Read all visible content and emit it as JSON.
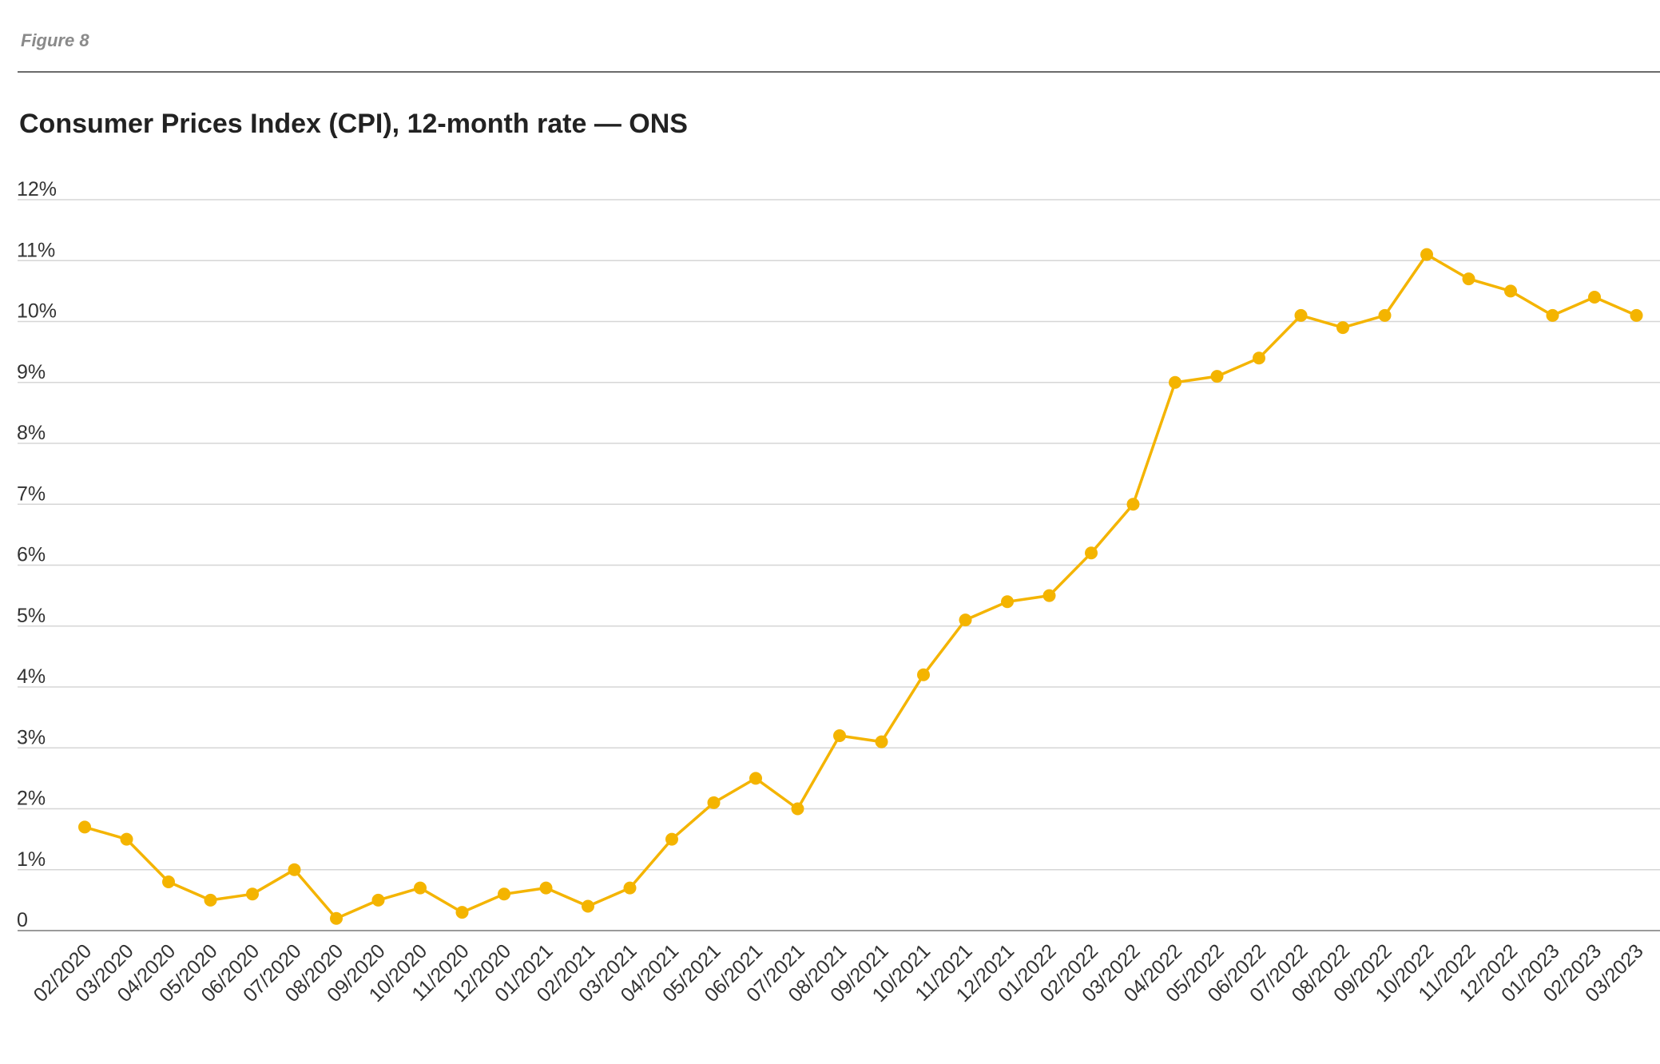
{
  "figure_label": "Figure 8",
  "chart_data": {
    "type": "line",
    "title": "Consumer Prices Index (CPI), 12-month rate — ONS",
    "xlabel": "",
    "ylabel": "",
    "ylim": [
      0,
      12
    ],
    "yticks": [
      {
        "value": 0,
        "label": "0"
      },
      {
        "value": 1,
        "label": "1%"
      },
      {
        "value": 2,
        "label": "2%"
      },
      {
        "value": 3,
        "label": "3%"
      },
      {
        "value": 4,
        "label": "4%"
      },
      {
        "value": 5,
        "label": "5%"
      },
      {
        "value": 6,
        "label": "6%"
      },
      {
        "value": 7,
        "label": "7%"
      },
      {
        "value": 8,
        "label": "8%"
      },
      {
        "value": 9,
        "label": "9%"
      },
      {
        "value": 10,
        "label": "10%"
      },
      {
        "value": 11,
        "label": "11%"
      },
      {
        "value": 12,
        "label": "12%"
      }
    ],
    "grid": true,
    "legend": "none",
    "color": "#F4B400",
    "categories": [
      "02/2020",
      "03/2020",
      "04/2020",
      "05/2020",
      "06/2020",
      "07/2020",
      "08/2020",
      "09/2020",
      "10/2020",
      "11/2020",
      "12/2020",
      "01/2021",
      "02/2021",
      "03/2021",
      "04/2021",
      "05/2021",
      "06/2021",
      "07/2021",
      "08/2021",
      "09/2021",
      "10/2021",
      "11/2021",
      "12/2021",
      "01/2022",
      "02/2022",
      "03/2022",
      "04/2022",
      "05/2022",
      "06/2022",
      "07/2022",
      "08/2022",
      "09/2022",
      "10/2022",
      "11/2022",
      "12/2022",
      "01/2023",
      "02/2023",
      "03/2023"
    ],
    "series": [
      {
        "values": [
          1.7,
          1.5,
          0.8,
          0.5,
          0.6,
          1.0,
          0.2,
          0.5,
          0.7,
          0.3,
          0.6,
          0.7,
          0.4,
          0.7,
          1.5,
          2.1,
          2.5,
          2.0,
          3.2,
          3.1,
          4.2,
          5.1,
          5.4,
          5.5,
          6.2,
          7.0,
          9.0,
          9.1,
          9.4,
          10.1,
          9.9,
          10.1,
          11.1,
          10.7,
          10.5,
          10.1,
          10.4,
          10.1
        ]
      }
    ]
  }
}
